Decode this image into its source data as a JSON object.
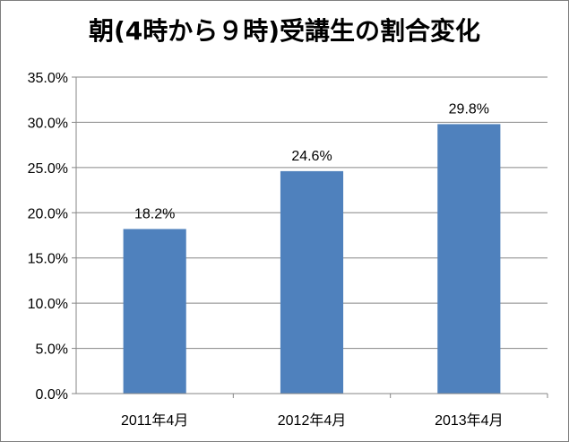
{
  "chart_data": {
    "type": "bar",
    "title": "朝(4時から９時)受講生の割合変化",
    "xlabel": "",
    "ylabel": "",
    "categories": [
      "2011年4月",
      "2012年4月",
      "2013年4月"
    ],
    "values": [
      18.2,
      24.6,
      29.8
    ],
    "value_labels": [
      "18.2%",
      "24.6%",
      "29.8%"
    ],
    "ylim": [
      0,
      35
    ],
    "y_ticks": [
      "0.0%",
      "5.0%",
      "10.0%",
      "15.0%",
      "20.0%",
      "25.0%",
      "30.0%",
      "35.0%"
    ],
    "grid": true,
    "legend": "none",
    "bar_color": "#4F81BD"
  }
}
